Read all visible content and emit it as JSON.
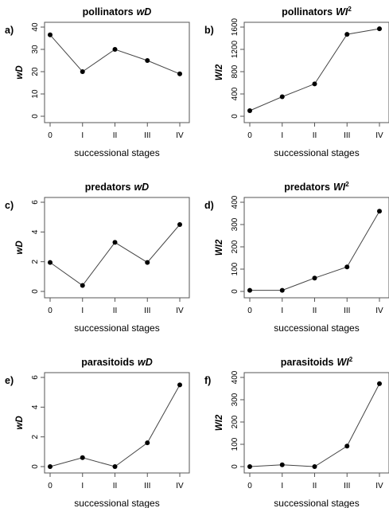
{
  "chart_data": [
    {
      "type": "line",
      "panel": "a)",
      "title": "pollinators",
      "title_var": "wD",
      "title_sup": "",
      "xlabel": "successional stages",
      "ylabel": "wD",
      "categories": [
        "0",
        "I",
        "II",
        "III",
        "IV"
      ],
      "values": [
        36.5,
        20,
        30,
        25,
        19
      ],
      "ylim": [
        0,
        40
      ],
      "yticks": [
        0,
        10,
        20,
        30,
        40
      ]
    },
    {
      "type": "line",
      "panel": "b)",
      "title": "pollinators",
      "title_var": "WI",
      "title_sup": "2",
      "xlabel": "successional stages",
      "ylabel": "WI2",
      "categories": [
        "0",
        "I",
        "II",
        "III",
        "IV"
      ],
      "values": [
        100,
        350,
        580,
        1470,
        1570
      ],
      "ylim": [
        0,
        1600
      ],
      "yticks": [
        0,
        400,
        800,
        1200,
        1600
      ]
    },
    {
      "type": "line",
      "panel": "c)",
      "title": "predators",
      "title_var": "wD",
      "title_sup": "",
      "xlabel": "successional stages",
      "ylabel": "wD",
      "categories": [
        "0",
        "I",
        "II",
        "III",
        "IV"
      ],
      "values": [
        1.95,
        0.4,
        3.3,
        1.95,
        4.5
      ],
      "ylim": [
        0,
        6
      ],
      "yticks": [
        0,
        2,
        4,
        6
      ]
    },
    {
      "type": "line",
      "panel": "d)",
      "title": "predators",
      "title_var": "WI",
      "title_sup": "2",
      "xlabel": "successional stages",
      "ylabel": "WI2",
      "categories": [
        "0",
        "I",
        "II",
        "III",
        "IV"
      ],
      "values": [
        5,
        5,
        60,
        110,
        360
      ],
      "ylim": [
        0,
        400
      ],
      "yticks": [
        0,
        100,
        200,
        300,
        400
      ]
    },
    {
      "type": "line",
      "panel": "e)",
      "title": "parasitoids",
      "title_var": "wD",
      "title_sup": "",
      "xlabel": "successional stages",
      "ylabel": "wD",
      "categories": [
        "0",
        "I",
        "II",
        "III",
        "IV"
      ],
      "values": [
        0,
        0.6,
        0,
        1.6,
        5.5
      ],
      "ylim": [
        0,
        6
      ],
      "yticks": [
        0,
        2,
        4,
        6
      ]
    },
    {
      "type": "line",
      "panel": "f)",
      "title": "parasitoids",
      "title_var": "WI",
      "title_sup": "2",
      "xlabel": "successional stages",
      "ylabel": "WI2",
      "categories": [
        "0",
        "I",
        "II",
        "III",
        "IV"
      ],
      "values": [
        0,
        8,
        0,
        92,
        372
      ],
      "ylim": [
        0,
        400
      ],
      "yticks": [
        0,
        100,
        200,
        300,
        400
      ]
    }
  ]
}
